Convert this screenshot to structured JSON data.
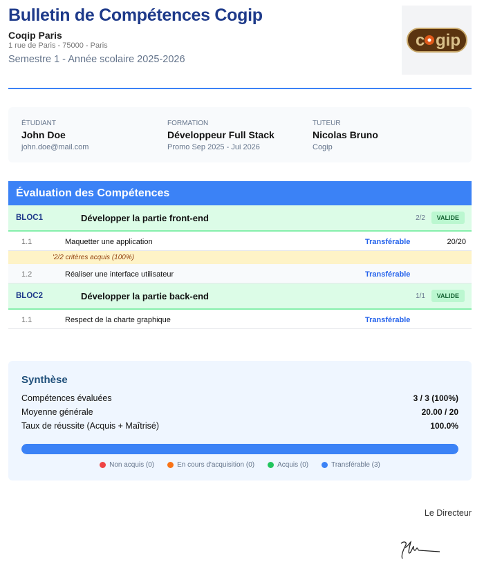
{
  "header": {
    "title": "Bulletin de Compétences Cogip",
    "school": "Coqip Paris",
    "address": "1 rue de Paris - 75000 - Paris",
    "semester": "Semestre 1 - Année scolaire 2025-2026",
    "logo_text": "cogip"
  },
  "info": [
    {
      "label": "Étudiant",
      "value": "John Doe",
      "sub": "john.doe@mail.com"
    },
    {
      "label": "Formation",
      "value": "Développeur Full Stack",
      "sub": "Promo Sep 2025 - Jui 2026"
    },
    {
      "label": "Tuteur",
      "value": "Nicolas Bruno",
      "sub": "Cogip"
    }
  ],
  "evaluation": {
    "title": "Évaluation des Compétences",
    "blocs": [
      {
        "code": "BLOC1",
        "name": "Développer la partie front-end",
        "count": "2/2",
        "badge": "VALIDE",
        "rows": [
          {
            "num": "1.1",
            "name": "Maquetter une application",
            "status": "Transférable",
            "note": "20/20",
            "comment": "'2/2 critères acquis (100%)"
          },
          {
            "num": "1.2",
            "name": "Réaliser une interface utilisateur",
            "status": "Transférable",
            "note": ""
          }
        ]
      },
      {
        "code": "BLOC2",
        "name": "Développer la partie back-end",
        "count": "1/1",
        "badge": "VALIDE",
        "rows": [
          {
            "num": "1.1",
            "name": "Respect de la charte graphique",
            "status": "Transférable",
            "note": ""
          }
        ]
      }
    ]
  },
  "synthese": {
    "title": "Synthèse",
    "rows": [
      {
        "label": "Compétences évaluées",
        "value": "3 / 3 (100%)"
      },
      {
        "label": "Moyenne générale",
        "value": "20.00 / 20"
      },
      {
        "label": "Taux de réussite (Acquis + Maîtrisé)",
        "value": "100.0%"
      }
    ],
    "progress_percent": 100,
    "legend": [
      {
        "label": "Non acquis (0)",
        "color": "#ef4444"
      },
      {
        "label": "En cours d'acquisition (0)",
        "color": "#f97316"
      },
      {
        "label": "Acquis (0)",
        "color": "#22c55e"
      },
      {
        "label": "Transférable (3)",
        "color": "#3b82f6"
      }
    ]
  },
  "footer": {
    "signatory": "Le Directeur"
  }
}
